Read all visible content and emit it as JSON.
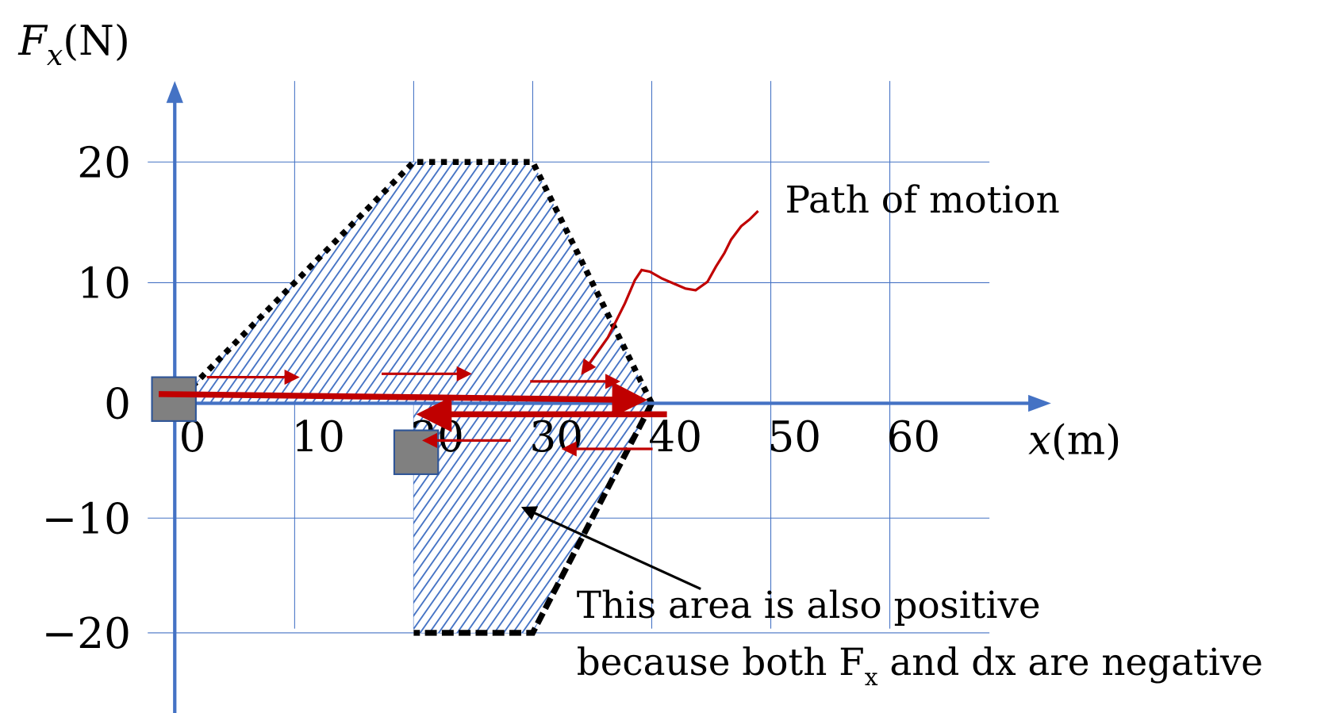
{
  "chart_data": {
    "type": "area",
    "ylabel_main": "F",
    "ylabel_sub": "x",
    "ylabel_unit": "(N)",
    "xlabel_main": "x",
    "xlabel_unit": "(m)",
    "x_ticks": [
      "0",
      "10",
      "20",
      "30",
      "40",
      "50",
      "60"
    ],
    "x_tick_values": [
      0,
      10,
      20,
      30,
      40,
      50,
      60
    ],
    "y_ticks": [
      "20",
      "10",
      "0",
      "−10",
      "−20"
    ],
    "y_tick_values": [
      20,
      10,
      0,
      -10,
      -20
    ],
    "xlim": [
      0,
      68
    ],
    "ylim": [
      -25,
      25
    ],
    "grid": true,
    "series": [
      {
        "points": [
          [
            0,
            0
          ],
          [
            20,
            20
          ],
          [
            30,
            20
          ],
          [
            40,
            0
          ]
        ]
      },
      {
        "points": [
          [
            40,
            0
          ],
          [
            30,
            -20
          ],
          [
            20,
            -20
          ],
          [
            20,
            0
          ]
        ]
      }
    ],
    "colors": {
      "axis": "#4472C4",
      "hatch": "#4472C4",
      "motion": "#C00000",
      "outline": "#000000",
      "block": "#808080"
    }
  },
  "annotations": {
    "path_label": "Path of motion",
    "area_note_line1": "This area is also positive",
    "area_note_line2_a": "because both F",
    "area_note_line2_sub": "x",
    "area_note_line2_b": " and dx are negative"
  }
}
